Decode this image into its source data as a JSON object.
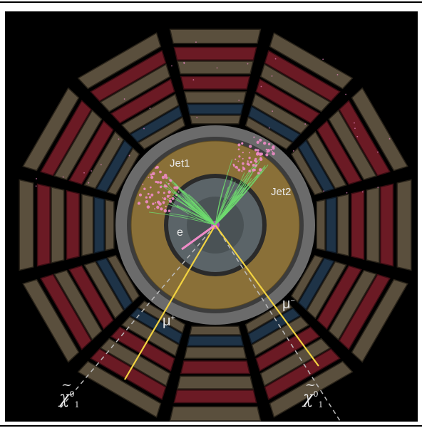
{
  "labels": {
    "jet1": "Jet1",
    "jet2": "Jet2",
    "electron": "e",
    "muon_plus": {
      "base": "μ",
      "charge": "+"
    },
    "muon_minus": {
      "base": "μ",
      "charge": "−"
    },
    "neutralino_left": {
      "base": "χ",
      "accent": "~",
      "sup": "0",
      "sub": "1"
    },
    "neutralino_right": {
      "base": "χ",
      "accent": "~",
      "sup": "0",
      "sub": "1"
    }
  },
  "colors": {
    "background": "#000000",
    "muon_chamber": "#5a4f3d",
    "hadron_calorimeter": "#6b1a24",
    "em_calorimeter": "#1e3347",
    "solenoid": "#6b6b6b",
    "tracker_gold": "#8a7038",
    "inner_grey": "#5b6468",
    "muon_track": "#f2d340",
    "electron_track": "#f08cc8",
    "jet_track": "#6fdc6f",
    "missing_energy": "#bbbbbb"
  }
}
